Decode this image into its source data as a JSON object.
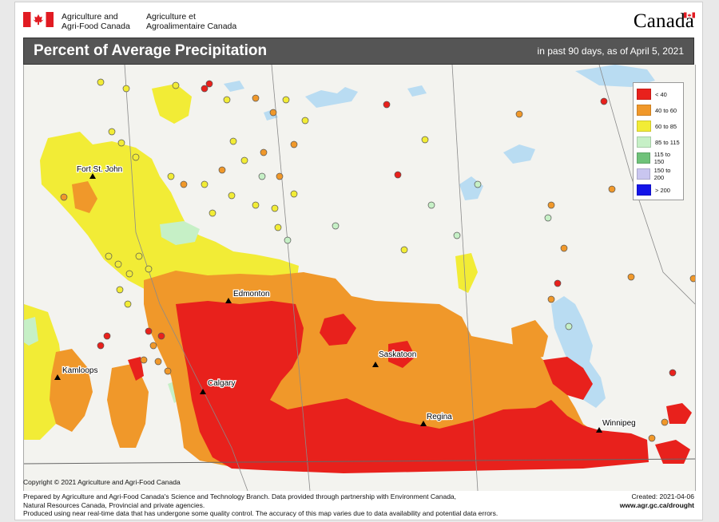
{
  "header": {
    "dept_en_line1": "Agriculture and",
    "dept_en_line2": "Agri-Food Canada",
    "dept_fr_line1": "Agriculture et",
    "dept_fr_line2": "Agroalimentaire Canada",
    "wordmark": "Canada"
  },
  "map": {
    "title": "Percent of Average Precipitation",
    "subtitle": "in past 90 days, as of April 5, 2021",
    "cities": [
      {
        "name": "Fort St. John"
      },
      {
        "name": "Edmonton"
      },
      {
        "name": "Saskatoon"
      },
      {
        "name": "Kamloops"
      },
      {
        "name": "Calgary"
      },
      {
        "name": "Regina"
      },
      {
        "name": "Winnipeg"
      }
    ]
  },
  "legend": [
    {
      "label": "< 40",
      "color": "#e8211c"
    },
    {
      "label": "40 to 60",
      "color": "#f0982a"
    },
    {
      "label": "60 to 85",
      "color": "#f2ec36"
    },
    {
      "label": "85 to 115",
      "color": "#c6f0c6"
    },
    {
      "label": "115 to 150",
      "color": "#6fc27a"
    },
    {
      "label": "150 to 200",
      "color": "#c9c6f0"
    },
    {
      "label": "> 200",
      "color": "#1414e8"
    }
  ],
  "footer": {
    "copyright": "Copyright © 2021 Agriculture and Agri-Food Canada",
    "line1": "Prepared by Agriculture and Agri-Food Canada's Science and Technology Branch. Data provided through partnership with Environment Canada,",
    "line2": "Natural Resources Canada, Provincial and private agencies.",
    "line3": "Produced using near real-time data that has undergone some quality control. The accuracy of this map varies due to data availability and potential data errors.",
    "created": "Created: 2021-04-06",
    "url": "www.agr.gc.ca/drought"
  },
  "colors": {
    "lt40": "#e8211c",
    "p40_60": "#f0982a",
    "p60_85": "#f2ec36",
    "p85_115": "#c6f0c6",
    "water": "#b9dcf2",
    "titlebar": "#555555"
  }
}
